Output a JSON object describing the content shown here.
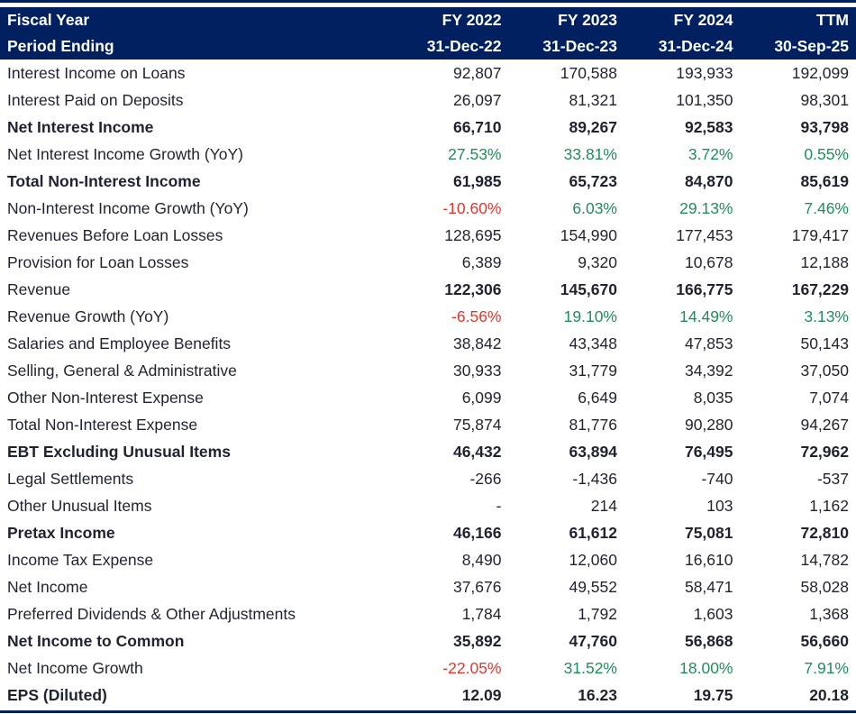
{
  "colors": {
    "header_background": "#002060",
    "header_text": "#ffffff",
    "body_text": "#1f2230",
    "positive_green": "#1e8e5a",
    "negative_red": "#e6342a"
  },
  "header": {
    "fiscal_year_label": "Fiscal Year",
    "period_label": "Period Ending",
    "columns": [
      "FY 2022",
      "FY 2023",
      "FY 2024",
      "TTM"
    ],
    "periods": [
      "31-Dec-22",
      "31-Dec-23",
      "31-Dec-24",
      "30-Sep-25"
    ]
  },
  "rows": [
    {
      "label": "Interest Income on Loans",
      "values": [
        "92,807",
        "170,588",
        "193,933",
        "192,099"
      ]
    },
    {
      "label": "Interest Paid on Deposits",
      "values": [
        "26,097",
        "81,321",
        "101,350",
        "98,301"
      ]
    },
    {
      "label": "Net Interest Income",
      "values": [
        "66,710",
        "89,267",
        "92,583",
        "93,798"
      ],
      "bold": true
    },
    {
      "label": "Net Interest Income Growth (YoY)",
      "values": [
        "27.53%",
        "33.81%",
        "3.72%",
        "0.55%"
      ],
      "growth": true
    },
    {
      "label": "Total Non-Interest Income",
      "values": [
        "61,985",
        "65,723",
        "84,870",
        "85,619"
      ],
      "bold": true
    },
    {
      "label": "Non-Interest Income Growth (YoY)",
      "values": [
        "-10.60%",
        "6.03%",
        "29.13%",
        "7.46%"
      ],
      "growth": true
    },
    {
      "label": "Revenues Before Loan Losses",
      "values": [
        "128,695",
        "154,990",
        "177,453",
        "179,417"
      ]
    },
    {
      "label": "Provision for Loan Losses",
      "values": [
        "6,389",
        "9,320",
        "10,678",
        "12,188"
      ]
    },
    {
      "label": "Revenue",
      "values": [
        "122,306",
        "145,670",
        "166,775",
        "167,229"
      ],
      "value_bold": true
    },
    {
      "label": "Revenue Growth (YoY)",
      "values": [
        "-6.56%",
        "19.10%",
        "14.49%",
        "3.13%"
      ],
      "growth": true
    },
    {
      "label": "Salaries and Employee Benefits",
      "values": [
        "38,842",
        "43,348",
        "47,853",
        "50,143"
      ]
    },
    {
      "label": "Selling, General & Administrative",
      "values": [
        "30,933",
        "31,779",
        "34,392",
        "37,050"
      ]
    },
    {
      "label": "Other Non-Interest Expense",
      "values": [
        "6,099",
        "6,649",
        "8,035",
        "7,074"
      ]
    },
    {
      "label": "Total Non-Interest Expense",
      "values": [
        "75,874",
        "81,776",
        "90,280",
        "94,267"
      ]
    },
    {
      "label": "EBT Excluding Unusual Items",
      "values": [
        "46,432",
        "63,894",
        "76,495",
        "72,962"
      ],
      "bold": true
    },
    {
      "label": "Legal Settlements",
      "values": [
        "-266",
        "-1,436",
        "-740",
        "-537"
      ]
    },
    {
      "label": "Other Unusual Items",
      "values": [
        "-",
        "214",
        "103",
        "1,162"
      ]
    },
    {
      "label": "Pretax Income",
      "values": [
        "46,166",
        "61,612",
        "75,081",
        "72,810"
      ],
      "bold": true
    },
    {
      "label": "Income Tax Expense",
      "values": [
        "8,490",
        "12,060",
        "16,610",
        "14,782"
      ]
    },
    {
      "label": "Net Income",
      "values": [
        "37,676",
        "49,552",
        "58,471",
        "58,028"
      ]
    },
    {
      "label": "Preferred Dividends & Other Adjustments",
      "values": [
        "1,784",
        "1,792",
        "1,603",
        "1,368"
      ]
    },
    {
      "label": "Net Income to Common",
      "values": [
        "35,892",
        "47,760",
        "56,868",
        "56,660"
      ],
      "bold": true
    },
    {
      "label": "Net Income Growth",
      "values": [
        "-22.05%",
        "31.52%",
        "18.00%",
        "7.91%"
      ],
      "growth": true
    },
    {
      "label": "EPS (Diluted)",
      "values": [
        "12.09",
        "16.23",
        "19.75",
        "20.18"
      ],
      "bold": true
    }
  ]
}
